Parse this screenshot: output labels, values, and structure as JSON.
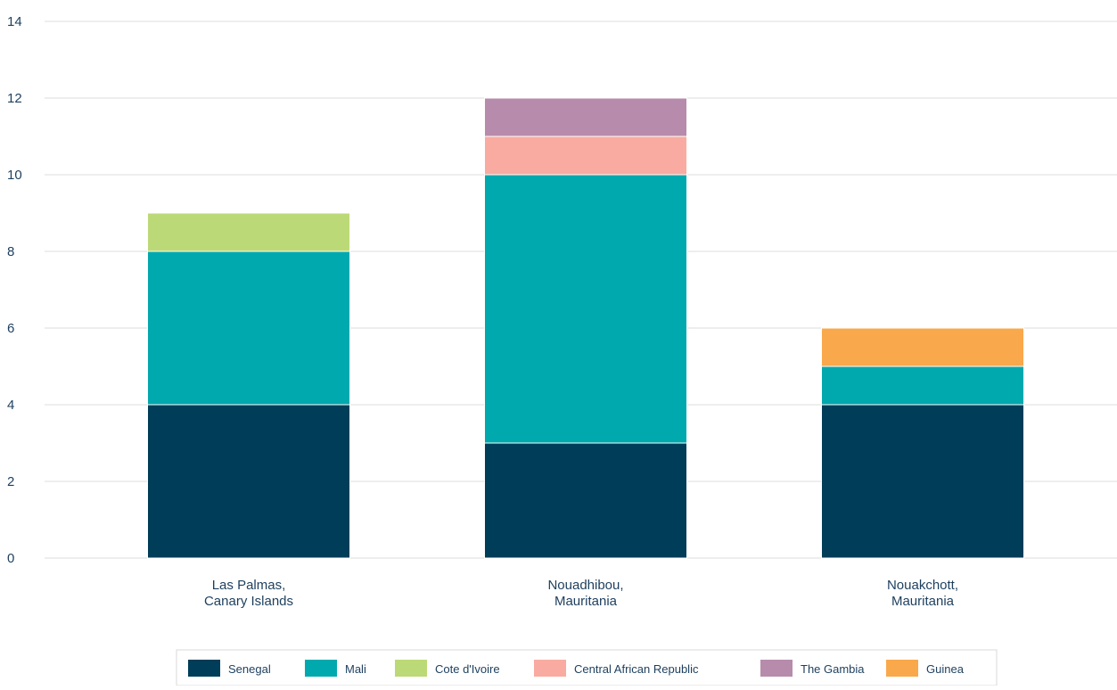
{
  "chart_data": {
    "type": "bar",
    "stacked": true,
    "categories": [
      [
        "Las Palmas,",
        "Canary Islands"
      ],
      [
        "Nouadhibou,",
        "Mauritania"
      ],
      [
        "Nouakchott,",
        "Mauritania"
      ]
    ],
    "series": [
      {
        "name": "Senegal",
        "color": "#003d58",
        "values": [
          4,
          3,
          4
        ]
      },
      {
        "name": "Mali",
        "color": "#00a9ae",
        "values": [
          4,
          7,
          1
        ]
      },
      {
        "name": "Cote d'Ivoire",
        "color": "#bcd977",
        "values": [
          1,
          0,
          0
        ]
      },
      {
        "name": "Central African Republic",
        "color": "#f9aba1",
        "values": [
          0,
          1,
          0
        ]
      },
      {
        "name": "The Gambia",
        "color": "#b78bab",
        "values": [
          0,
          1,
          0
        ]
      },
      {
        "name": "Guinea",
        "color": "#f9a84b",
        "values": [
          0,
          0,
          1
        ]
      }
    ],
    "yticks": [
      "0",
      "2",
      "4",
      "6",
      "8",
      "10",
      "12",
      "14"
    ],
    "ylim": [
      0,
      14
    ],
    "grid": true,
    "legend": "bottom-center"
  }
}
